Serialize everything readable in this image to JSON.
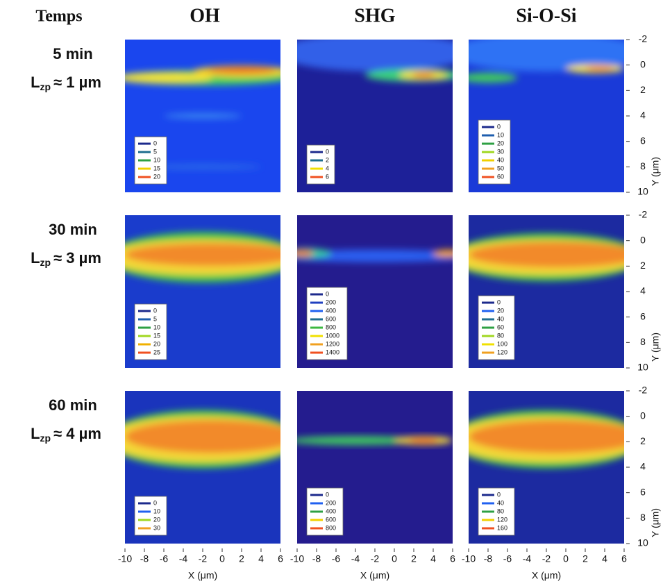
{
  "header": {
    "row_label": "Temps",
    "columns": [
      "OH",
      "SHG",
      "Si-O-Si"
    ]
  },
  "rows": [
    {
      "time": "5 min",
      "length": {
        "symbol": "L",
        "subscript": "zp",
        "approx": "≈ 1 µm"
      },
      "legends": [
        {
          "values": [
            0,
            5,
            10,
            15,
            20
          ],
          "colors": [
            "#1c2a8c",
            "#1e6e8e",
            "#2ea043",
            "#f0d000",
            "#f05020"
          ]
        },
        {
          "values": [
            0,
            2,
            4,
            6
          ],
          "colors": [
            "#1c2a8c",
            "#1e6e8e",
            "#f0e000",
            "#f05020"
          ]
        },
        {
          "values": [
            0,
            10,
            20,
            30,
            40,
            50,
            60
          ],
          "colors": [
            "#1c2a8c",
            "#1e5eae",
            "#2ea043",
            "#a0d820",
            "#f0d000",
            "#f0a020",
            "#f05020"
          ]
        }
      ]
    },
    {
      "time": "30 min",
      "length": {
        "symbol": "L",
        "subscript": "zp",
        "approx": "≈ 3 µm"
      },
      "legends": [
        {
          "values": [
            0,
            5,
            10,
            15,
            20,
            25
          ],
          "colors": [
            "#1c2a8c",
            "#1e5eae",
            "#2ea043",
            "#a0d820",
            "#f0b000",
            "#f05020"
          ]
        },
        {
          "values": [
            0,
            200,
            400,
            600,
            800,
            1000,
            1200,
            1400
          ],
          "colors": [
            "#1c2a8c",
            "#2040c0",
            "#2060f0",
            "#1e6e8e",
            "#3cb840",
            "#f0e000",
            "#f0a020",
            "#f05020"
          ]
        },
        {
          "values": [
            0,
            20,
            40,
            60,
            80,
            100,
            120
          ],
          "colors": [
            "#1c2a8c",
            "#2060f0",
            "#1e6e8e",
            "#2ea043",
            "#a0d820",
            "#f0e000",
            "#f0a020"
          ]
        }
      ]
    },
    {
      "time": "60 min",
      "length": {
        "symbol": "L",
        "subscript": "zp",
        "approx": "≈ 4 µm"
      },
      "legends": [
        {
          "values": [
            0,
            10,
            20,
            30
          ],
          "colors": [
            "#1c2a8c",
            "#2060f0",
            "#a0d820",
            "#f0a020"
          ]
        },
        {
          "values": [
            0,
            200,
            400,
            600,
            800
          ],
          "colors": [
            "#1c2a8c",
            "#2060f0",
            "#2ea043",
            "#f0d000",
            "#f05020"
          ]
        },
        {
          "values": [
            0,
            40,
            80,
            120,
            160
          ],
          "colors": [
            "#1c2a8c",
            "#2060f0",
            "#2ea043",
            "#f0d000",
            "#f05020"
          ]
        }
      ]
    }
  ],
  "x_axis": {
    "label": "X (μm)",
    "ticks": [
      -10,
      -8,
      -6,
      -4,
      -2,
      0,
      2,
      4,
      6
    ]
  },
  "y_axis": {
    "label": "Y (μm)",
    "ticks": [
      -2,
      0,
      2,
      4,
      6,
      8,
      10
    ]
  }
}
